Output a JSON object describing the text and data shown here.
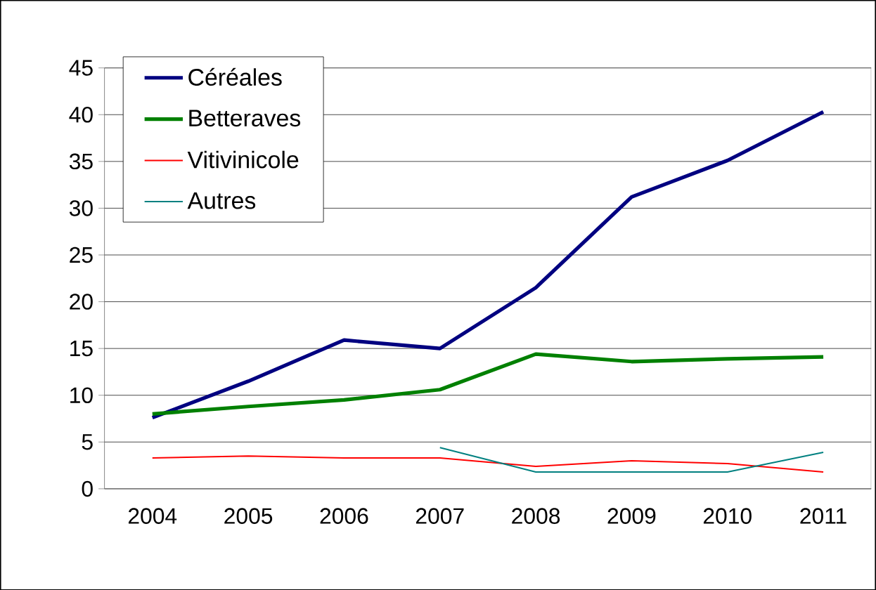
{
  "chart_data": {
    "type": "line",
    "categories": [
      "2004",
      "2005",
      "2006",
      "2007",
      "2008",
      "2009",
      "2010",
      "2011"
    ],
    "series": [
      {
        "name": "Céréales",
        "color": "#000080",
        "values": [
          7.6,
          11.5,
          15.9,
          15.0,
          21.5,
          31.2,
          35.1,
          40.3
        ]
      },
      {
        "name": "Betteraves",
        "color": "#008000",
        "values": [
          8.0,
          8.8,
          9.5,
          10.6,
          14.4,
          13.6,
          13.9,
          14.1
        ]
      },
      {
        "name": "Vitivinicole",
        "color": "#ff0000",
        "values": [
          3.3,
          3.5,
          3.3,
          3.3,
          2.4,
          3.0,
          2.7,
          1.8
        ]
      },
      {
        "name": "Autres",
        "color": "#008080",
        "values": [
          null,
          null,
          null,
          4.4,
          1.8,
          1.8,
          1.8,
          3.9
        ]
      }
    ],
    "ylim": [
      0,
      45
    ],
    "yticks": [
      0,
      5,
      10,
      15,
      20,
      25,
      30,
      35,
      40,
      45
    ],
    "grid": "y",
    "legend": "top left",
    "marker": "none",
    "line_style": "solid"
  }
}
